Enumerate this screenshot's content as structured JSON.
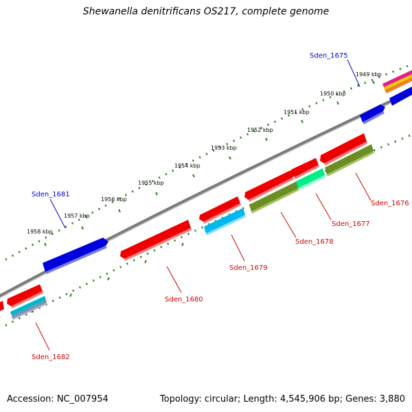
{
  "title": "Shewanella denitrificans OS217, complete genome",
  "footer": {
    "accession": "Accession: NC_007954",
    "summary": "Topology: circular; Length: 4,545,906 bp; Genes: 3,880"
  },
  "colors": {
    "backbone": "#808080",
    "tick_major": "#2e7d1e",
    "label_forward": "#0000cc",
    "label_reverse": "#cc0000"
  },
  "ticks": [
    {
      "label": "1949 kbp"
    },
    {
      "label": "1950 kbp"
    },
    {
      "label": "1951 kbp"
    },
    {
      "label": "1952 kbp"
    },
    {
      "label": "1953 kbp"
    },
    {
      "label": "1954 kbp"
    },
    {
      "label": "1955 kbp"
    },
    {
      "label": "1956 kbp"
    },
    {
      "label": "1957 kbp"
    },
    {
      "label": "1958 kbp"
    }
  ],
  "gene_labels": [
    {
      "name": "Sden_1675",
      "strand": "forward"
    },
    {
      "name": "Sden_1681",
      "strand": "forward"
    },
    {
      "name": "Sden_1676",
      "strand": "reverse"
    },
    {
      "name": "Sden_1677",
      "strand": "reverse"
    },
    {
      "name": "Sden_1678",
      "strand": "reverse"
    },
    {
      "name": "Sden_1679",
      "strand": "reverse"
    },
    {
      "name": "Sden_1680",
      "strand": "reverse"
    },
    {
      "name": "Sden_1682",
      "strand": "reverse"
    }
  ]
}
